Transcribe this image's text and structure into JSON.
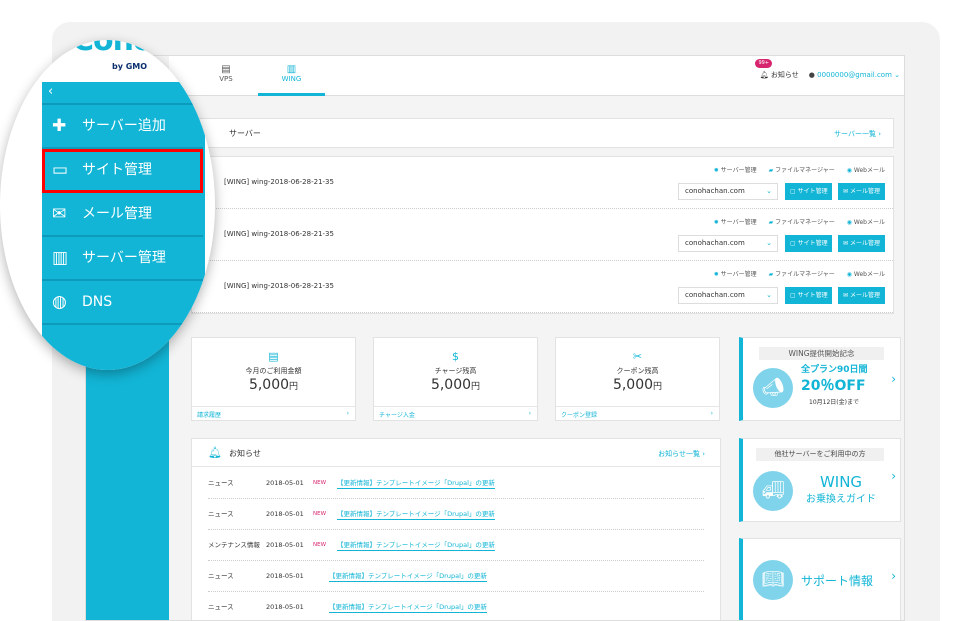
{
  "header": {
    "tabs": [
      {
        "label": "VPS",
        "icon": "server-icon"
      },
      {
        "label": "WING",
        "icon": "wing-icon",
        "active": true
      }
    ],
    "notice_badge": "99+",
    "notice_label": "お知らせ",
    "account": "0000000@gmail.com"
  },
  "servers": {
    "title": "サーバー",
    "list_link": "サーバー一覧",
    "rows": [
      {
        "name": "[WING] wing-2018-06-28-21-35",
        "domain": "conohachan.com"
      },
      {
        "name": "[WING] wing-2018-06-28-21-35",
        "domain": "conohachan.com"
      },
      {
        "name": "[WING] wing-2018-06-28-21-35",
        "domain": "conohachan.com"
      }
    ],
    "actions": {
      "server_manage": "サーバー管理",
      "file_manager": "ファイルマネージャー",
      "webmail": "Webメール",
      "site_manage": "サイト管理",
      "mail_manage": "メール管理"
    }
  },
  "cards": [
    {
      "label": "今月のご利用金額",
      "value": "5,000",
      "unit": "円",
      "link": "請求履歴"
    },
    {
      "label": "チャージ残高",
      "value": "5,000",
      "unit": "円",
      "link": "チャージ入金"
    },
    {
      "label": "クーポン残高",
      "value": "5,000",
      "unit": "円",
      "link": "クーポン登録"
    }
  ],
  "notices": {
    "title": "お知らせ",
    "list_link": "お知らせ一覧",
    "items": [
      {
        "category": "ニュース",
        "date": "2018-05-01",
        "new": "NEW",
        "title": "【更新情報】テンプレートイメージ「Drupal」の更新"
      },
      {
        "category": "ニュース",
        "date": "2018-05-01",
        "new": "NEW",
        "title": "【更新情報】テンプレートイメージ「Drupal」の更新"
      },
      {
        "category": "メンテナンス情報",
        "date": "2018-05-01",
        "new": "NEW",
        "title": "【更新情報】テンプレートイメージ「Drupal」の更新"
      },
      {
        "category": "ニュース",
        "date": "2018-05-01",
        "new": "",
        "title": "【更新情報】テンプレートイメージ「Drupal」の更新"
      },
      {
        "category": "ニュース",
        "date": "2018-05-01",
        "new": "",
        "title": "【更新情報】テンプレートイメージ「Drupal」の更新"
      }
    ]
  },
  "promos": {
    "campaign": {
      "heading": "WING提供開始記念",
      "line1": "全プラン90日間",
      "line2": "20％OFF",
      "line3": "10月12日(金)まで"
    },
    "migrate": {
      "heading": "他社サーバーをご利用中の方",
      "line1": "WING",
      "line2": "お乗換えガイド"
    },
    "support": {
      "label": "サポート情報"
    }
  },
  "magnifier": {
    "logo": "ConoHa by GMO",
    "back": "‹",
    "items": [
      {
        "label": "サーバー追加",
        "icon": "plus-icon"
      },
      {
        "label": "サイト管理",
        "icon": "window-icon",
        "highlighted": true
      },
      {
        "label": "メール管理",
        "icon": "mail-icon"
      },
      {
        "label": "サーバー管理",
        "icon": "server-icon"
      },
      {
        "label": "DNS",
        "icon": "globe-icon"
      }
    ]
  },
  "colors": {
    "accent": "#12b5d6",
    "highlight": "#ff0000",
    "new": "#d6246e"
  }
}
